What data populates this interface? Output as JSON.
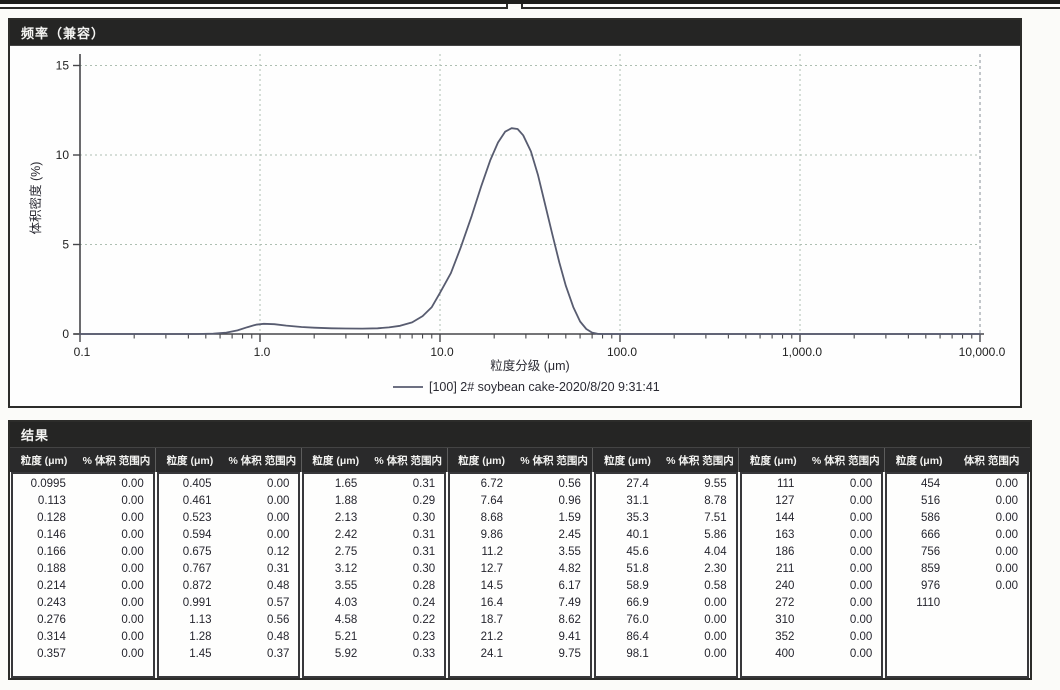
{
  "chart": {
    "title": "频率（兼容）",
    "xlabel": "粒度分级 (μm)",
    "ylabel": "体积密度 (%)",
    "legend_label": "[100] 2# soybean cake-2020/8/20 9:31:41",
    "ytick_labels": [
      "0",
      "5",
      "10",
      "15"
    ],
    "xtick_labels": [
      "0.1",
      "1.0",
      "10.0",
      "100.0",
      "1,000.0",
      "10,000.0"
    ],
    "curve_color": "#585c70",
    "grid_color": "#aebfb2",
    "axis_color": "#46464a"
  },
  "chart_data": {
    "type": "line",
    "title": "频率（兼容）",
    "xlabel": "粒度分级 (μm)",
    "ylabel": "体积密度 (%)",
    "x_scale": "log",
    "xlim": [
      0.1,
      10000
    ],
    "ylim": [
      0,
      15
    ],
    "yticks": [
      0,
      5,
      10,
      15
    ],
    "xtick_labels": [
      "0.1",
      "1.0",
      "10.0",
      "100.0",
      "1,000.0",
      "10,000.0"
    ],
    "grid": true,
    "legend_position": "bottom",
    "series": [
      {
        "name": "[100] 2# soybean cake-2020/8/20 9:31:41",
        "x": [
          0.1,
          0.3,
          0.45,
          0.55,
          0.65,
          0.75,
          0.85,
          0.95,
          1.05,
          1.2,
          1.4,
          1.7,
          2.0,
          2.5,
          3.0,
          3.7,
          4.5,
          5.2,
          6.0,
          7.0,
          8.0,
          9.0,
          10.0,
          11.5,
          13,
          15,
          17,
          19,
          21,
          23,
          25,
          27,
          29,
          32,
          35,
          38,
          42,
          46,
          50,
          55,
          60,
          65,
          70,
          75,
          80,
          100,
          1000,
          10000
        ],
        "y": [
          0,
          0,
          0,
          0.02,
          0.08,
          0.2,
          0.38,
          0.52,
          0.57,
          0.55,
          0.47,
          0.39,
          0.35,
          0.32,
          0.31,
          0.3,
          0.32,
          0.37,
          0.46,
          0.65,
          1.0,
          1.5,
          2.3,
          3.4,
          4.8,
          6.6,
          8.3,
          9.7,
          10.7,
          11.3,
          11.5,
          11.45,
          11.1,
          10.2,
          8.9,
          7.4,
          5.6,
          4.0,
          2.7,
          1.5,
          0.7,
          0.28,
          0.08,
          0.01,
          0,
          0,
          0,
          0
        ]
      }
    ]
  },
  "results": {
    "title": "结果",
    "header_size": "粒度 (μm)",
    "header_pct": "% 体积 范围内",
    "header_pct_last": "体积 范围内",
    "groups": [
      {
        "rows": [
          [
            "0.0995",
            "0.00"
          ],
          [
            "0.113",
            "0.00"
          ],
          [
            "0.128",
            "0.00"
          ],
          [
            "0.146",
            "0.00"
          ],
          [
            "0.166",
            "0.00"
          ],
          [
            "0.188",
            "0.00"
          ],
          [
            "0.214",
            "0.00"
          ],
          [
            "0.243",
            "0.00"
          ],
          [
            "0.276",
            "0.00"
          ],
          [
            "0.314",
            "0.00"
          ],
          [
            "0.357",
            "0.00"
          ]
        ]
      },
      {
        "rows": [
          [
            "0.405",
            "0.00"
          ],
          [
            "0.461",
            "0.00"
          ],
          [
            "0.523",
            "0.00"
          ],
          [
            "0.594",
            "0.00"
          ],
          [
            "0.675",
            "0.12"
          ],
          [
            "0.767",
            "0.31"
          ],
          [
            "0.872",
            "0.48"
          ],
          [
            "0.991",
            "0.57"
          ],
          [
            "1.13",
            "0.56"
          ],
          [
            "1.28",
            "0.48"
          ],
          [
            "1.45",
            "0.37"
          ]
        ]
      },
      {
        "rows": [
          [
            "1.65",
            "0.31"
          ],
          [
            "1.88",
            "0.29"
          ],
          [
            "2.13",
            "0.30"
          ],
          [
            "2.42",
            "0.31"
          ],
          [
            "2.75",
            "0.31"
          ],
          [
            "3.12",
            "0.30"
          ],
          [
            "3.55",
            "0.28"
          ],
          [
            "4.03",
            "0.24"
          ],
          [
            "4.58",
            "0.22"
          ],
          [
            "5.21",
            "0.23"
          ],
          [
            "5.92",
            "0.33"
          ]
        ]
      },
      {
        "rows": [
          [
            "6.72",
            "0.56"
          ],
          [
            "7.64",
            "0.96"
          ],
          [
            "8.68",
            "1.59"
          ],
          [
            "9.86",
            "2.45"
          ],
          [
            "11.2",
            "3.55"
          ],
          [
            "12.7",
            "4.82"
          ],
          [
            "14.5",
            "6.17"
          ],
          [
            "16.4",
            "7.49"
          ],
          [
            "18.7",
            "8.62"
          ],
          [
            "21.2",
            "9.41"
          ],
          [
            "24.1",
            "9.75"
          ]
        ]
      },
      {
        "rows": [
          [
            "27.4",
            "9.55"
          ],
          [
            "31.1",
            "8.78"
          ],
          [
            "35.3",
            "7.51"
          ],
          [
            "40.1",
            "5.86"
          ],
          [
            "45.6",
            "4.04"
          ],
          [
            "51.8",
            "2.30"
          ],
          [
            "58.9",
            "0.58"
          ],
          [
            "66.9",
            "0.00"
          ],
          [
            "76.0",
            "0.00"
          ],
          [
            "86.4",
            "0.00"
          ],
          [
            "98.1",
            "0.00"
          ]
        ]
      },
      {
        "rows": [
          [
            "111",
            "0.00"
          ],
          [
            "127",
            "0.00"
          ],
          [
            "144",
            "0.00"
          ],
          [
            "163",
            "0.00"
          ],
          [
            "186",
            "0.00"
          ],
          [
            "211",
            "0.00"
          ],
          [
            "240",
            "0.00"
          ],
          [
            "272",
            "0.00"
          ],
          [
            "310",
            "0.00"
          ],
          [
            "352",
            "0.00"
          ],
          [
            "400",
            "0.00"
          ]
        ]
      },
      {
        "rows": [
          [
            "454",
            "0.00"
          ],
          [
            "516",
            "0.00"
          ],
          [
            "586",
            "0.00"
          ],
          [
            "666",
            "0.00"
          ],
          [
            "756",
            "0.00"
          ],
          [
            "859",
            "0.00"
          ],
          [
            "976",
            "0.00"
          ],
          [
            "1110",
            ""
          ]
        ]
      }
    ]
  }
}
